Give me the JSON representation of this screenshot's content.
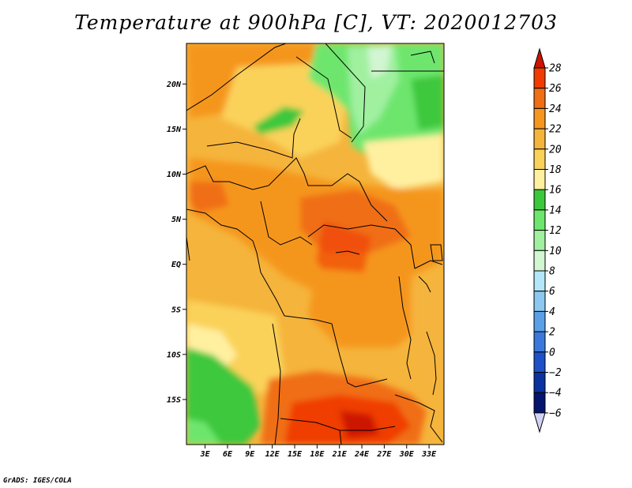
{
  "title": "Temperature at 900hPa [C], VT: 2020012703",
  "credit": "GrADS: IGES/COLA",
  "map": {
    "lat_labels": [
      "20N",
      "15N",
      "10N",
      "5N",
      "EQ",
      "5S",
      "10S",
      "15S"
    ],
    "lat_values": [
      20,
      15,
      10,
      5,
      0,
      -5,
      -10,
      -15
    ],
    "lon_labels": [
      "3E",
      "6E",
      "9E",
      "12E",
      "15E",
      "18E",
      "21E",
      "24E",
      "27E",
      "30E",
      "33E"
    ],
    "lon_values": [
      3,
      6,
      9,
      12,
      15,
      18,
      21,
      24,
      27,
      30,
      33
    ],
    "lat_range": [
      -20,
      24.5
    ],
    "lon_range": [
      0.5,
      35
    ]
  },
  "colorbar": {
    "levels": [
      28,
      26,
      24,
      22,
      20,
      18,
      16,
      14,
      12,
      10,
      8,
      6,
      4,
      2,
      0,
      -2,
      -4,
      -6
    ],
    "labels": [
      "28",
      "26",
      "24",
      "22",
      "20",
      "18",
      "16",
      "14",
      "12",
      "10",
      "8",
      "6",
      "4",
      "2",
      "0",
      "−2",
      "−4",
      "−6"
    ],
    "colors_top_to_bottom": [
      "#cc1400",
      "#f03c00",
      "#f06e14",
      "#f5961e",
      "#f5b43c",
      "#fad25a",
      "#fff0a0",
      "#3cc83c",
      "#6ee66e",
      "#a0f0a0",
      "#d2f5d2",
      "#b4e6fa",
      "#8cc8f0",
      "#5aa0e6",
      "#3c78dc",
      "#1e50c8",
      "#0a32a0",
      "#05146e",
      "#d2d2f5"
    ]
  }
}
